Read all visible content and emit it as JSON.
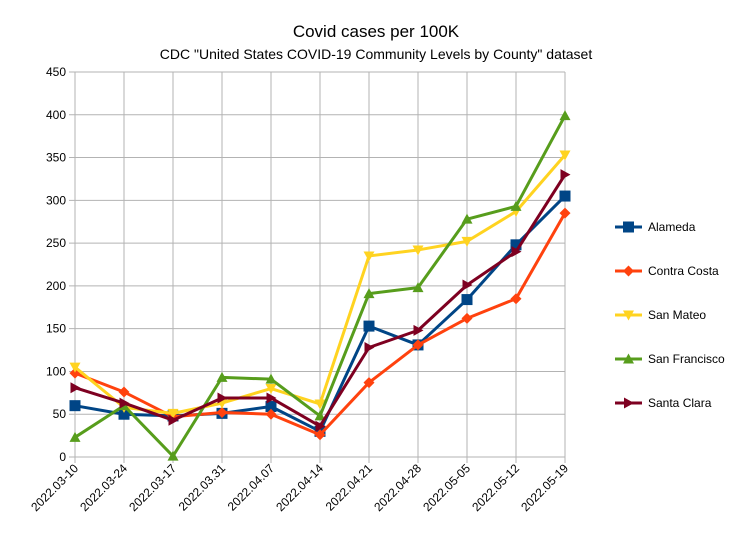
{
  "chart_data": {
    "type": "line",
    "title": "Covid cases per 100K",
    "subtitle": "CDC \"United States COVID-19 Community Levels by County\" dataset",
    "xlabel": "",
    "ylabel": "",
    "ylim": [
      0,
      450
    ],
    "yticks": [
      0,
      50,
      100,
      150,
      200,
      250,
      300,
      350,
      400,
      450
    ],
    "grid": true,
    "legend_position": "right",
    "categories": [
      "2022.03-10",
      "2022.03-24",
      "2022.03-17",
      "2022.03.31",
      "2022.04.07",
      "2022.04-14",
      "2022.04.21",
      "2022.04-28",
      "2022.05-05",
      "2022.05-12",
      "2022.05-19"
    ],
    "series": [
      {
        "name": "Alameda",
        "color": "#004586",
        "marker": "square",
        "values": [
          60,
          50,
          48,
          51,
          59,
          30,
          153,
          131,
          184,
          248,
          305
        ]
      },
      {
        "name": "Contra Costa",
        "color": "#ff420e",
        "marker": "diamond",
        "values": [
          98,
          76,
          47,
          52,
          50,
          26,
          87,
          131,
          162,
          185,
          285
        ]
      },
      {
        "name": "San Mateo",
        "color": "#ffd320",
        "marker": "triangle-down",
        "values": [
          105,
          58,
          51,
          63,
          80,
          62,
          235,
          242,
          252,
          287,
          353
        ]
      },
      {
        "name": "San Francisco",
        "color": "#579d1c",
        "marker": "triangle-up",
        "values": [
          23,
          60,
          1,
          93,
          91,
          48,
          191,
          198,
          278,
          293,
          399
        ]
      },
      {
        "name": "Santa Clara",
        "color": "#7e0021",
        "marker": "triangle-right",
        "values": [
          81,
          63,
          43,
          69,
          69,
          36,
          128,
          148,
          201,
          240,
          330
        ]
      }
    ]
  }
}
